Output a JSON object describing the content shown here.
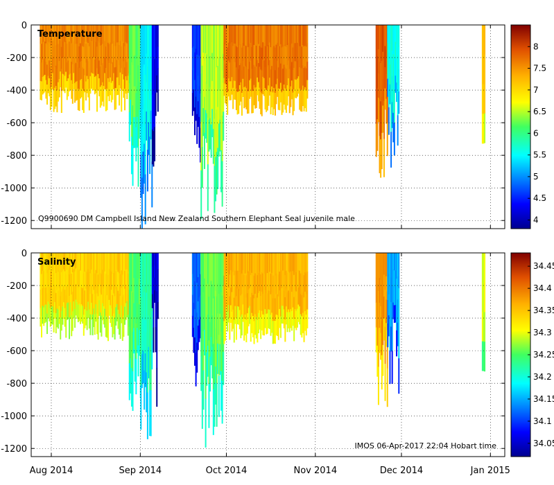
{
  "chart_data": [
    {
      "type": "heatmap",
      "panel": "temperature",
      "title": "Temperature",
      "annotation": "Q9900690 DM Campbell Island New Zealand Southern Elephant Seal juvenile male",
      "ylabel": "",
      "ylim": [
        -1250,
        0
      ],
      "yticks": [
        0,
        -200,
        -400,
        -600,
        -800,
        -1000,
        -1200
      ],
      "ytick_labels": [
        "0",
        "-200",
        "-400",
        "-600",
        "-800",
        "-1000",
        "-1200"
      ],
      "grid": true,
      "colorbar": {
        "range": [
          3.8,
          8.5
        ],
        "ticks": [
          4,
          4.5,
          5,
          5.5,
          6,
          6.5,
          7,
          7.5,
          8
        ],
        "tick_labels": [
          "4",
          "4.5",
          "5",
          "5.5",
          "6",
          "6.5",
          "7",
          "7.5",
          "8"
        ],
        "colormap": "jet"
      },
      "segments": [
        {
          "start": "2014-07-28",
          "end": "2014-08-28",
          "depth_min": -380,
          "depth_max": -540,
          "value": 7.6
        },
        {
          "start": "2014-08-28",
          "end": "2014-09-01",
          "depth_min": -600,
          "depth_max": -1000,
          "value": 6.2
        },
        {
          "start": "2014-09-01",
          "end": "2014-09-05",
          "depth_min": -700,
          "depth_max": -1250,
          "value": 5.5
        },
        {
          "start": "2014-09-05",
          "end": "2014-09-07",
          "depth_min": -300,
          "depth_max": -980,
          "value": 4.3
        },
        {
          "start": "2014-09-19",
          "end": "2014-09-22",
          "depth_min": -500,
          "depth_max": -850,
          "value": 4.6
        },
        {
          "start": "2014-09-22",
          "end": "2014-09-30",
          "depth_min": -600,
          "depth_max": -1200,
          "value": 6.5
        },
        {
          "start": "2014-09-30",
          "end": "2014-10-29",
          "depth_min": -420,
          "depth_max": -560,
          "value": 7.7
        },
        {
          "start": "2014-11-22",
          "end": "2014-11-26",
          "depth_min": -500,
          "depth_max": -1000,
          "value": 7.9
        },
        {
          "start": "2014-11-26",
          "end": "2014-11-30",
          "depth_min": -400,
          "depth_max": -880,
          "value": 5.6
        },
        {
          "start": "2014-12-29",
          "end": "2014-12-30",
          "depth_min": -720,
          "depth_max": -730,
          "value": 7.2
        }
      ]
    },
    {
      "type": "heatmap",
      "panel": "salinity",
      "title": "Salinity",
      "annotation": "IMOS 06-Apr-2017 22:04 Hobart time",
      "ylabel": "",
      "ylim": [
        -1250,
        0
      ],
      "yticks": [
        0,
        -200,
        -400,
        -600,
        -800,
        -1000,
        -1200
      ],
      "ytick_labels": [
        "0",
        "-200",
        "-400",
        "-600",
        "-800",
        "-1000",
        "-1200"
      ],
      "grid": true,
      "colorbar": {
        "range": [
          34.02,
          34.48
        ],
        "ticks": [
          34.05,
          34.1,
          34.15,
          34.2,
          34.25,
          34.3,
          34.35,
          34.4,
          34.45
        ],
        "tick_labels": [
          "34.05",
          "34.1",
          "34.15",
          "34.2",
          "34.25",
          "34.3",
          "34.35",
          "34.4",
          "34.45"
        ],
        "colormap": "jet"
      },
      "segments": [
        {
          "start": "2014-07-28",
          "end": "2014-08-28",
          "depth_min": -380,
          "depth_max": -540,
          "value": 34.34
        },
        {
          "start": "2014-08-28",
          "end": "2014-09-01",
          "depth_min": -600,
          "depth_max": -1000,
          "value": 34.25
        },
        {
          "start": "2014-09-01",
          "end": "2014-09-05",
          "depth_min": -700,
          "depth_max": -1250,
          "value": 34.22
        },
        {
          "start": "2014-09-05",
          "end": "2014-09-07",
          "depth_min": -300,
          "depth_max": -980,
          "value": 34.06
        },
        {
          "start": "2014-09-19",
          "end": "2014-09-22",
          "depth_min": -500,
          "depth_max": -850,
          "value": 34.12
        },
        {
          "start": "2014-09-22",
          "end": "2014-09-30",
          "depth_min": -600,
          "depth_max": -1200,
          "value": 34.26
        },
        {
          "start": "2014-09-30",
          "end": "2014-10-29",
          "depth_min": -420,
          "depth_max": -560,
          "value": 34.36
        },
        {
          "start": "2014-11-22",
          "end": "2014-11-26",
          "depth_min": -500,
          "depth_max": -1000,
          "value": 34.38
        },
        {
          "start": "2014-11-26",
          "end": "2014-11-30",
          "depth_min": -400,
          "depth_max": -880,
          "value": 34.15
        },
        {
          "start": "2014-12-29",
          "end": "2014-12-30",
          "depth_min": -720,
          "depth_max": -730,
          "value": 34.3
        }
      ]
    }
  ],
  "xaxis": {
    "range": [
      "2014-07-25",
      "2015-01-06"
    ],
    "ticks": [
      "2014-08-01",
      "2014-09-01",
      "2014-10-01",
      "2014-11-01",
      "2014-12-01",
      "2015-01-01"
    ],
    "tick_labels": [
      "Aug 2014",
      "Sep 2014",
      "Oct 2014",
      "Nov 2014",
      "Dec 2014",
      "Jan 2015"
    ]
  }
}
